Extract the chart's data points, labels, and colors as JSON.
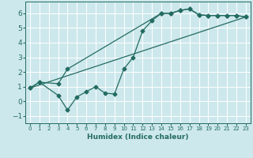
{
  "xlabel": "Humidex (Indice chaleur)",
  "xlim": [
    -0.5,
    23.5
  ],
  "ylim": [
    -1.5,
    6.8
  ],
  "xticks": [
    0,
    1,
    2,
    3,
    4,
    5,
    6,
    7,
    8,
    9,
    10,
    11,
    12,
    13,
    14,
    15,
    16,
    17,
    18,
    19,
    20,
    21,
    22,
    23
  ],
  "yticks": [
    -1,
    0,
    1,
    2,
    3,
    4,
    5,
    6
  ],
  "bg_color": "#cde8ec",
  "grid_color": "#ffffff",
  "line_color": "#236b61",
  "line1_x": [
    0,
    1,
    3,
    4,
    5,
    6,
    7,
    8,
    9,
    10,
    11,
    12,
    13,
    14,
    15,
    16,
    17,
    18,
    19,
    20,
    21,
    22,
    23
  ],
  "line1_y": [
    0.9,
    1.3,
    0.4,
    -0.6,
    0.3,
    0.65,
    1.0,
    0.55,
    0.5,
    2.2,
    3.0,
    4.8,
    5.5,
    6.0,
    6.0,
    6.2,
    6.3,
    5.9,
    5.85,
    5.85,
    5.85,
    5.85,
    5.75
  ],
  "line2_x": [
    0,
    1,
    3,
    4,
    14,
    15,
    16,
    17,
    18,
    19,
    20,
    21,
    22,
    23
  ],
  "line2_y": [
    0.9,
    1.3,
    1.2,
    2.2,
    6.0,
    6.0,
    6.2,
    6.3,
    5.9,
    5.85,
    5.85,
    5.85,
    5.85,
    5.75
  ],
  "line3_x": [
    0,
    23
  ],
  "line3_y": [
    0.9,
    5.75
  ],
  "xlabel_fontsize": 6.5,
  "tick_fontsize_x": 5.0,
  "tick_fontsize_y": 6.5
}
